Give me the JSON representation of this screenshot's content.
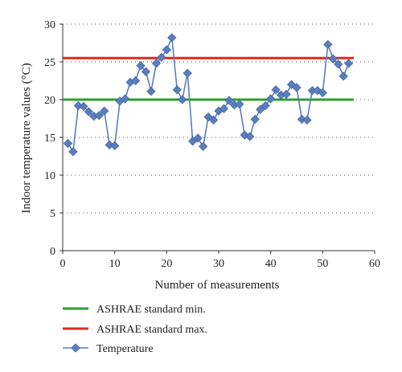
{
  "chart_data": {
    "type": "line",
    "title": "",
    "xlabel": "Number of measurements",
    "ylabel": "Indoor temperature values (°C)",
    "xlim": [
      0,
      60
    ],
    "ylim": [
      0,
      30
    ],
    "x_ticks": [
      0,
      10,
      20,
      30,
      40,
      50,
      60
    ],
    "y_ticks": [
      0,
      5,
      10,
      15,
      20,
      25,
      30
    ],
    "grid": "horizontal dotted",
    "legend_position": "bottom",
    "series": [
      {
        "name": "ASHRAE standard min.",
        "kind": "line",
        "color": "#2ca02c",
        "x": [
          0,
          56
        ],
        "y": [
          20,
          20
        ]
      },
      {
        "name": "ASHRAE standard max.",
        "kind": "line",
        "color": "#e8271c",
        "x": [
          0,
          56
        ],
        "y": [
          25.5,
          25.5
        ]
      },
      {
        "name": "Temperature",
        "kind": "line-markers",
        "marker": "diamond",
        "color": "#5a7dbf",
        "x": [
          1,
          2,
          3,
          4,
          5,
          6,
          7,
          8,
          9,
          10,
          11,
          12,
          13,
          14,
          15,
          16,
          17,
          18,
          19,
          20,
          21,
          22,
          23,
          24,
          25,
          26,
          27,
          28,
          29,
          30,
          31,
          32,
          33,
          34,
          35,
          36,
          37,
          38,
          39,
          40,
          41,
          42,
          43,
          44,
          45,
          46,
          47,
          48,
          49,
          50,
          51,
          52,
          53,
          54,
          55
        ],
        "y": [
          14.2,
          13.1,
          19.2,
          19.1,
          18.4,
          17.8,
          17.9,
          18.5,
          14.0,
          13.9,
          19.8,
          20.1,
          22.3,
          22.5,
          24.5,
          23.7,
          21.1,
          24.8,
          25.6,
          26.6,
          28.2,
          21.3,
          20.0,
          23.5,
          14.5,
          14.9,
          13.8,
          17.7,
          17.3,
          18.5,
          18.8,
          19.9,
          19.3,
          19.4,
          15.3,
          15.1,
          17.4,
          18.7,
          19.2,
          20.1,
          21.3,
          20.6,
          20.7,
          22.0,
          21.6,
          17.4,
          17.3,
          21.2,
          21.2,
          20.9,
          27.3,
          25.4,
          24.7,
          23.1,
          24.8
        ]
      }
    ]
  }
}
